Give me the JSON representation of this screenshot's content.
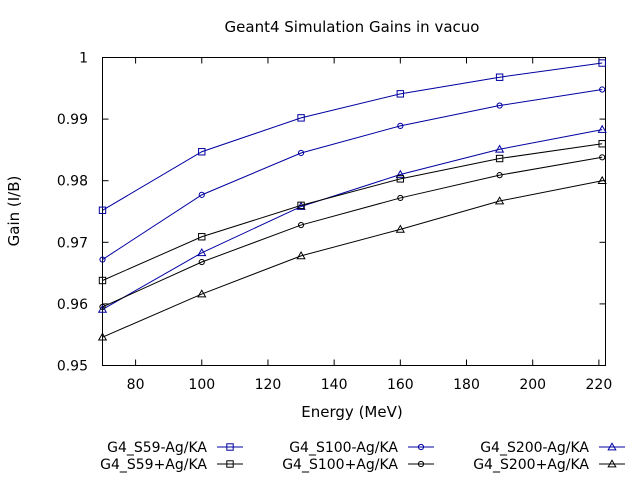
{
  "chart_data": {
    "type": "line",
    "title": "Geant4 Simulation Gains in vacuo",
    "xlabel": "Energy (MeV)",
    "ylabel": "Gain (I/B)",
    "xlim": [
      70,
      222
    ],
    "ylim": [
      0.95,
      1.0
    ],
    "xticks": [
      "80",
      "100",
      "120",
      "140",
      "160",
      "180",
      "200",
      "220"
    ],
    "yticks": [
      "0.95",
      "0.96",
      "0.97",
      "0.98",
      "0.99",
      "1"
    ],
    "x": [
      70,
      100,
      130,
      160,
      190,
      221
    ],
    "grid": false,
    "legend_position": "bottom",
    "series": [
      {
        "name": "G4_S59-Ag/KA",
        "color": "#0000a0",
        "marker": "square",
        "values": [
          0.9752,
          0.9847,
          0.9902,
          0.9941,
          0.9968,
          0.9991
        ]
      },
      {
        "name": "G4_S100-Ag/KA",
        "color": "#0000a0",
        "marker": "circle",
        "values": [
          0.9672,
          0.9777,
          0.9845,
          0.9889,
          0.9922,
          0.9948
        ]
      },
      {
        "name": "G4_S200-Ag/KA",
        "color": "#0000a0",
        "marker": "triangle",
        "values": [
          0.9591,
          0.9683,
          0.9758,
          0.981,
          0.9851,
          0.9883
        ]
      },
      {
        "name": "G4_S59+Ag/KA",
        "color": "#000000",
        "marker": "square",
        "values": [
          0.9638,
          0.9709,
          0.976,
          0.9803,
          0.9836,
          0.986
        ]
      },
      {
        "name": "G4_S100+Ag/KA",
        "color": "#000000",
        "marker": "circle",
        "values": [
          0.9595,
          0.9668,
          0.9728,
          0.9772,
          0.9809,
          0.9838
        ]
      },
      {
        "name": "G4_S200+Ag/KA",
        "color": "#000000",
        "marker": "triangle",
        "values": [
          0.9546,
          0.9616,
          0.9678,
          0.9721,
          0.9767,
          0.98
        ]
      }
    ]
  }
}
